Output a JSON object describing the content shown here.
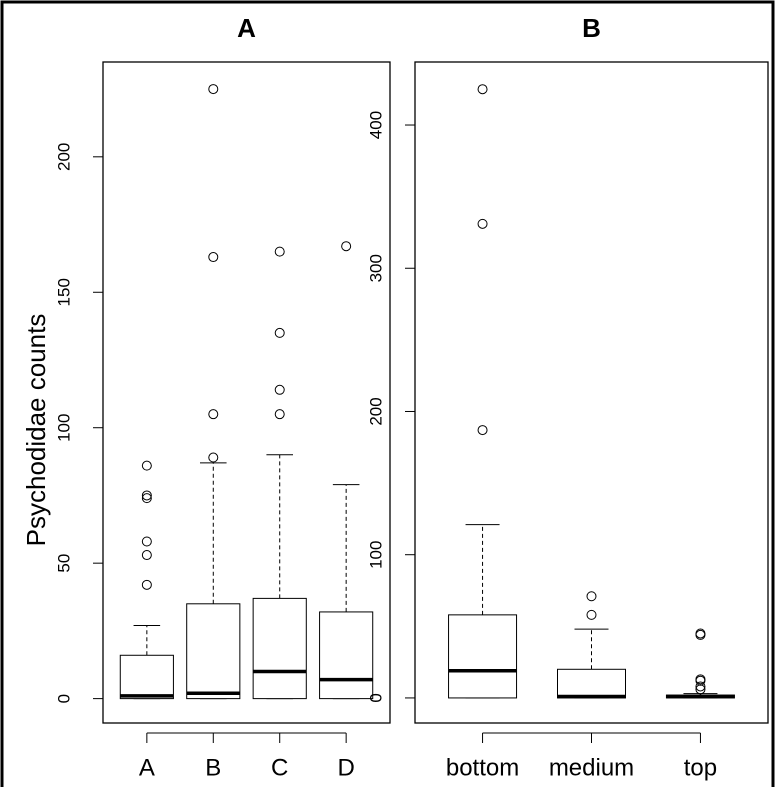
{
  "chart_data": [
    {
      "type": "boxplot",
      "title": "A",
      "ylabel": "Psychodidae counts",
      "categories": [
        "A",
        "B",
        "C",
        "D"
      ],
      "boxes": [
        {
          "low": 0,
          "q1": 0,
          "median": 1,
          "q3": 16,
          "high": 27,
          "outliers": [
            42,
            53,
            58,
            74,
            75,
            86
          ]
        },
        {
          "low": 0,
          "q1": 0,
          "median": 2,
          "q3": 35,
          "high": 87,
          "outliers": [
            89,
            105,
            163,
            225
          ]
        },
        {
          "low": 0,
          "q1": 0,
          "median": 10,
          "q3": 37,
          "high": 90,
          "outliers": [
            105,
            114,
            135,
            165
          ]
        },
        {
          "low": 0,
          "q1": 0,
          "median": 7,
          "q3": 32,
          "high": 79,
          "outliers": [
            167
          ]
        }
      ],
      "ylim": [
        -9,
        235
      ],
      "yticks": [
        0,
        50,
        100,
        150,
        200
      ]
    },
    {
      "type": "boxplot",
      "title": "B",
      "categories": [
        "bottom",
        "medium",
        "top"
      ],
      "boxes": [
        {
          "low": 0,
          "q1": 0,
          "median": 19,
          "q3": 58,
          "high": 121,
          "outliers": [
            187,
            331,
            425
          ]
        },
        {
          "low": 0,
          "q1": 0,
          "median": 1,
          "q3": 20,
          "high": 48,
          "outliers": [
            58,
            71
          ]
        },
        {
          "low": 0,
          "q1": 0,
          "median": 1,
          "q3": 2,
          "high": 3,
          "outliers": [
            6,
            8,
            12,
            13,
            44,
            45
          ]
        }
      ],
      "ylim": [
        -17.5,
        444
      ],
      "yticks": [
        0,
        100,
        200,
        300,
        400
      ]
    }
  ]
}
